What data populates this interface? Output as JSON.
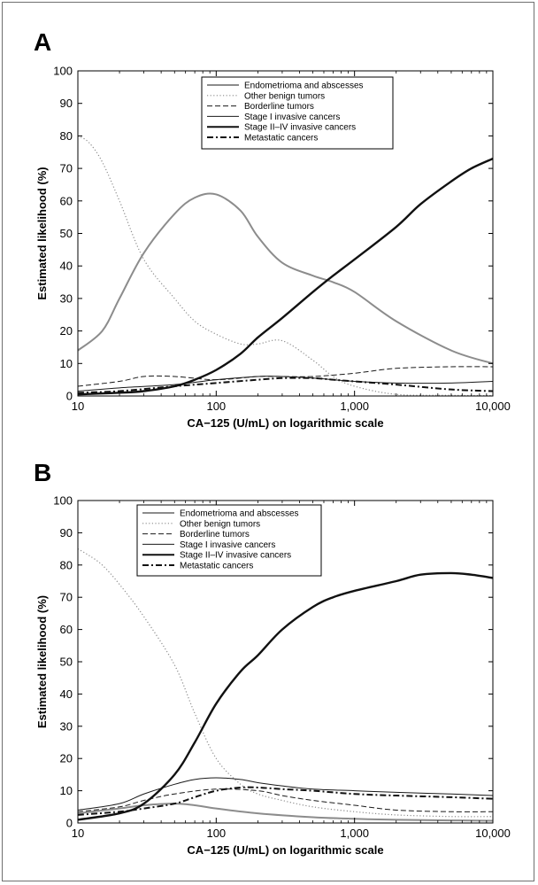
{
  "chart_data": [
    {
      "panel": "A",
      "type": "line",
      "xlabel": "CA−125 (U/mL) on logarithmic scale",
      "ylabel": "Estimated likelihood (%)",
      "xscale": "log",
      "xlim": [
        10,
        10000
      ],
      "ylim": [
        0,
        100
      ],
      "xticks": [
        10,
        100,
        1000,
        10000
      ],
      "xtick_labels": [
        "10",
        "100",
        "1,000",
        "10,000"
      ],
      "yticks": [
        0,
        10,
        20,
        30,
        40,
        50,
        60,
        70,
        80,
        90,
        100
      ],
      "ytick_labels": [
        "0",
        "10",
        "20",
        "30",
        "40",
        "50",
        "60",
        "70",
        "80",
        "90",
        "100"
      ],
      "grid": false,
      "legend_position": "top-center",
      "series": [
        {
          "name": "Endometrioma and abscesses",
          "style": "solid-gray",
          "x": [
            10,
            15,
            20,
            30,
            50,
            70,
            100,
            150,
            200,
            300,
            500,
            700,
            1000,
            2000,
            5000,
            10000
          ],
          "y": [
            14,
            20,
            30,
            44,
            56,
            61,
            62,
            57,
            49,
            41,
            37,
            35,
            32,
            23,
            14,
            10
          ]
        },
        {
          "name": "Other benign tumors",
          "style": "dotted-gray",
          "x": [
            10,
            12,
            15,
            20,
            30,
            50,
            70,
            100,
            150,
            200,
            300,
            500,
            700,
            1000,
            2000,
            5000,
            10000
          ],
          "y": [
            80,
            78,
            72,
            60,
            42,
            30,
            23,
            19,
            16,
            16,
            17,
            11,
            6,
            3,
            0.5,
            0.2,
            0.1
          ]
        },
        {
          "name": "Borderline tumors",
          "style": "dashed-black",
          "x": [
            10,
            20,
            30,
            50,
            100,
            200,
            300,
            500,
            1000,
            2000,
            5000,
            10000
          ],
          "y": [
            3,
            4.5,
            6,
            6,
            5,
            6,
            6,
            6,
            7,
            8.5,
            9,
            9
          ]
        },
        {
          "name": "Stage I invasive cancers",
          "style": "thin-solid-black",
          "x": [
            10,
            20,
            50,
            100,
            200,
            300,
            500,
            1000,
            2000,
            5000,
            10000
          ],
          "y": [
            1.5,
            2.5,
            3.5,
            5,
            6,
            6,
            5.5,
            4.5,
            4,
            4,
            4.5
          ]
        },
        {
          "name": "Stage II–IV invasive cancers",
          "style": "thick-solid-black",
          "x": [
            10,
            20,
            30,
            50,
            70,
            100,
            150,
            200,
            300,
            500,
            700,
            1000,
            2000,
            3000,
            5000,
            7000,
            10000
          ],
          "y": [
            0.5,
            1,
            1.5,
            3,
            5,
            8,
            13,
            18,
            24,
            32,
            37,
            42,
            52,
            59,
            66,
            70,
            73
          ]
        },
        {
          "name": "Metastatic cancers",
          "style": "dashdot-black",
          "x": [
            10,
            20,
            50,
            100,
            200,
            300,
            500,
            700,
            1000,
            2000,
            5000,
            10000
          ],
          "y": [
            1,
            1.5,
            3,
            4,
            5,
            5.5,
            5.5,
            5,
            4.5,
            3.5,
            2,
            1.5
          ]
        }
      ]
    },
    {
      "panel": "B",
      "type": "line",
      "xlabel": "CA−125 (U/mL) on logarithmic scale",
      "ylabel": "Estimated likelihood (%)",
      "xscale": "log",
      "xlim": [
        10,
        10000
      ],
      "ylim": [
        0,
        100
      ],
      "xticks": [
        10,
        100,
        1000,
        10000
      ],
      "xtick_labels": [
        "10",
        "100",
        "1,000",
        "10,000"
      ],
      "yticks": [
        0,
        10,
        20,
        30,
        40,
        50,
        60,
        70,
        80,
        90,
        100
      ],
      "ytick_labels": [
        "0",
        "10",
        "20",
        "30",
        "40",
        "50",
        "60",
        "70",
        "80",
        "90",
        "100"
      ],
      "grid": false,
      "legend_position": "top-center",
      "series": [
        {
          "name": "Endometrioma and abscesses",
          "style": "solid-gray",
          "x": [
            10,
            20,
            30,
            50,
            70,
            100,
            200,
            500,
            1000,
            2000,
            5000,
            10000
          ],
          "y": [
            3,
            4.5,
            5.5,
            6,
            5.5,
            4.5,
            3,
            1.8,
            1.3,
            1,
            0.8,
            0.7
          ]
        },
        {
          "name": "Other benign tumors",
          "style": "dotted-gray",
          "x": [
            10,
            12,
            15,
            20,
            30,
            50,
            70,
            100,
            150,
            200,
            300,
            500,
            1000,
            2000,
            5000,
            10000
          ],
          "y": [
            85,
            83,
            80,
            74,
            64,
            49,
            34,
            20,
            12,
            9,
            7,
            5,
            3.5,
            2.5,
            2,
            2
          ]
        },
        {
          "name": "Borderline tumors",
          "style": "dashed-black",
          "x": [
            10,
            20,
            30,
            50,
            100,
            200,
            300,
            500,
            1000,
            2000,
            5000,
            10000
          ],
          "y": [
            3.5,
            5,
            7,
            9,
            10.5,
            10,
            8.5,
            7,
            5.5,
            4,
            3.5,
            3.5
          ]
        },
        {
          "name": "Stage I invasive cancers",
          "style": "thin-solid-black",
          "x": [
            10,
            20,
            30,
            50,
            70,
            100,
            150,
            200,
            300,
            500,
            1000,
            2000,
            5000,
            10000
          ],
          "y": [
            4,
            6,
            9,
            12,
            13.5,
            14,
            13.5,
            12.5,
            11.5,
            10.5,
            10,
            9.5,
            9,
            8.5
          ]
        },
        {
          "name": "Stage II–IV invasive cancers",
          "style": "thick-solid-black",
          "x": [
            10,
            20,
            30,
            50,
            70,
            100,
            150,
            200,
            300,
            500,
            700,
            1000,
            2000,
            3000,
            5000,
            7000,
            10000
          ],
          "y": [
            1,
            3,
            6,
            15,
            25,
            37,
            47,
            52,
            60,
            67,
            70,
            72,
            75,
            77,
            77.5,
            77,
            76
          ]
        },
        {
          "name": "Metastatic cancers",
          "style": "dashdot-black",
          "x": [
            10,
            20,
            30,
            50,
            70,
            100,
            150,
            200,
            300,
            500,
            1000,
            2000,
            5000,
            10000
          ],
          "y": [
            2.5,
            3.5,
            4.5,
            6,
            8,
            10,
            11,
            11,
            10.5,
            10,
            9,
            8.5,
            8,
            7.5
          ]
        }
      ]
    }
  ]
}
